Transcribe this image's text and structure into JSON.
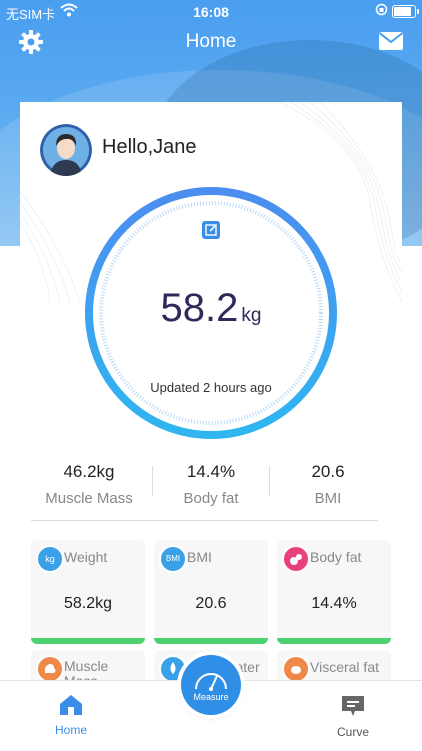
{
  "status_bar": {
    "carrier": "无SIM卡",
    "time": "16:08"
  },
  "header": {
    "title": "Home",
    "left_icon": "gear-icon",
    "right_icon": "mail-icon"
  },
  "profile": {
    "greeting": "Hello,Jane",
    "avatar_icon": "avatar-icon"
  },
  "weight_gauge": {
    "value": "58.2",
    "unit": "kg",
    "updated": "Updated 2 hours ago",
    "edit_icon": "edit-icon"
  },
  "summary_stats": [
    {
      "value": "46.2kg",
      "label": "Muscle Mass"
    },
    {
      "value": "14.4%",
      "label": "Body fat"
    },
    {
      "value": "20.6",
      "label": "BMI"
    }
  ],
  "metric_tiles": [
    {
      "name": "Weight",
      "value": "58.2kg",
      "icon": "kg",
      "icon_color": "#3aa0e8"
    },
    {
      "name": "BMI",
      "value": "20.6",
      "icon": "BMI",
      "icon_color": "#3aa0e8"
    },
    {
      "name": "Body fat",
      "value": "14.4%",
      "icon": "drop-icon",
      "icon_color": "#e8407c"
    },
    {
      "name": "Muscle Mass",
      "value": "",
      "icon": "muscle-icon",
      "icon_color": "#f0884a"
    },
    {
      "name": "Body Water",
      "value": "",
      "icon": "water-drop-icon",
      "icon_color": "#3aa0e8"
    },
    {
      "name": "Visceral fat",
      "value": "",
      "icon": "fat-icon",
      "icon_color": "#f0884a"
    }
  ],
  "tab_bar": {
    "home_label": "Home",
    "measure_label": "Measure",
    "curve_label": "Curve",
    "active_color": "#3a8ee8"
  }
}
